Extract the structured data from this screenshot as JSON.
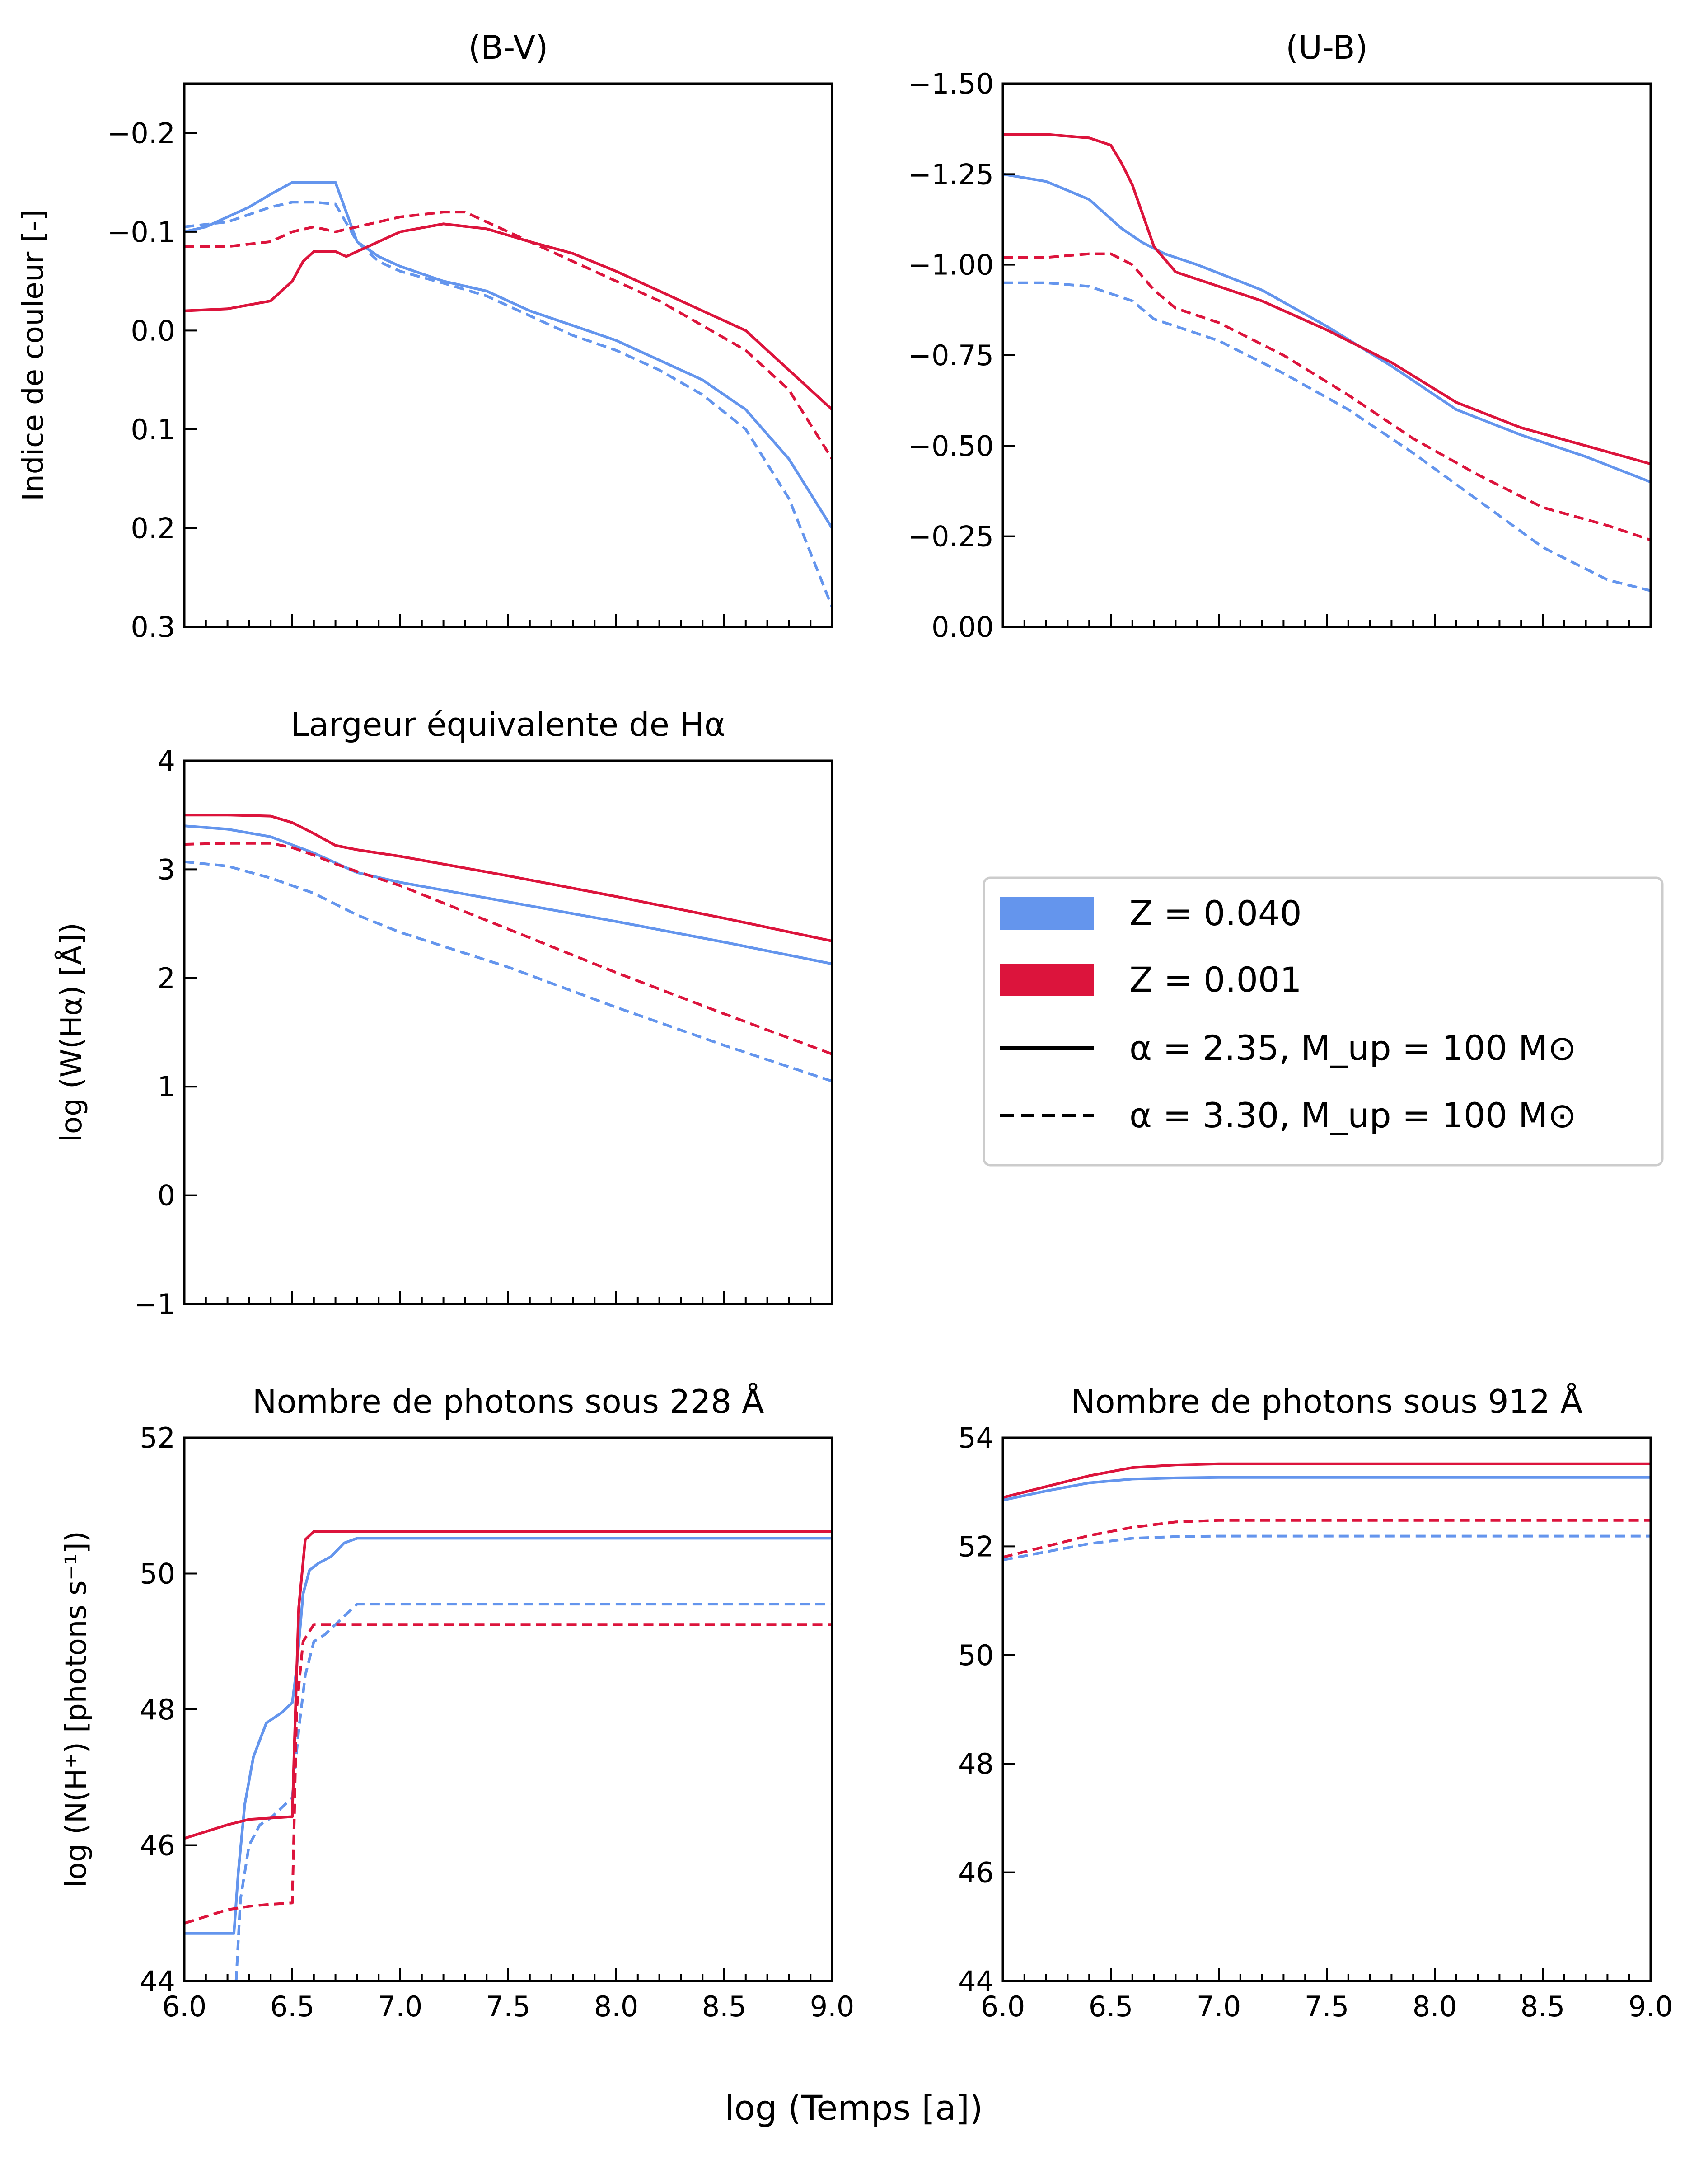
{
  "colors": {
    "z040": "#6495ED",
    "z001": "#DC143C"
  },
  "figure": {
    "xlabel": "log (Temps [a])"
  },
  "legend": {
    "z040": "Z = 0.040",
    "z001": "Z = 0.001",
    "a235": "α = 2.35, M_up = 100 M⊙",
    "a330": "α = 3.30, M_up = 100 M⊙"
  },
  "chart_data": [
    {
      "id": "bv",
      "type": "line",
      "title": "(B-V)",
      "ylabel": "Indice de couleur [-]",
      "xlim": [
        6.0,
        9.0
      ],
      "ylim": [
        0.3,
        -0.25
      ],
      "inverted_y": true,
      "yticks": [
        -0.2,
        -0.1,
        0.0,
        0.1,
        0.2,
        0.3
      ],
      "ytick_labels": [
        "−0.2",
        "−0.1",
        "0.0",
        "0.1",
        "0.2",
        "0.3"
      ],
      "show_xtick_labels": false,
      "series": [
        {
          "metallicity": "0.040",
          "alpha": "2.35",
          "color": "#6495ED",
          "dash": false,
          "x": [
            6.0,
            6.1,
            6.2,
            6.3,
            6.4,
            6.5,
            6.56,
            6.6,
            6.7,
            6.75,
            6.8,
            6.9,
            7.0,
            7.2,
            7.4,
            7.6,
            7.8,
            8.0,
            8.2,
            8.4,
            8.6,
            8.8,
            9.0
          ],
          "y": [
            -0.1,
            -0.105,
            -0.115,
            -0.125,
            -0.138,
            -0.15,
            -0.15,
            -0.15,
            -0.15,
            -0.12,
            -0.09,
            -0.075,
            -0.065,
            -0.05,
            -0.04,
            -0.02,
            -0.005,
            0.01,
            0.03,
            0.05,
            0.08,
            0.13,
            0.2
          ]
        },
        {
          "metallicity": "0.040",
          "alpha": "3.30",
          "color": "#6495ED",
          "dash": true,
          "x": [
            6.0,
            6.2,
            6.4,
            6.5,
            6.6,
            6.7,
            6.8,
            6.9,
            7.0,
            7.2,
            7.4,
            7.6,
            7.8,
            8.0,
            8.2,
            8.4,
            8.6,
            8.8,
            9.0
          ],
          "y": [
            -0.105,
            -0.11,
            -0.125,
            -0.13,
            -0.13,
            -0.128,
            -0.09,
            -0.07,
            -0.06,
            -0.048,
            -0.035,
            -0.015,
            0.005,
            0.02,
            0.04,
            0.065,
            0.1,
            0.17,
            0.28
          ]
        },
        {
          "metallicity": "0.001",
          "alpha": "2.35",
          "color": "#DC143C",
          "dash": false,
          "x": [
            6.0,
            6.2,
            6.4,
            6.5,
            6.55,
            6.6,
            6.7,
            6.75,
            6.8,
            7.0,
            7.2,
            7.4,
            7.6,
            7.8,
            8.0,
            8.2,
            8.4,
            8.6,
            8.8,
            9.0
          ],
          "y": [
            -0.02,
            -0.022,
            -0.03,
            -0.05,
            -0.07,
            -0.08,
            -0.08,
            -0.075,
            -0.08,
            -0.1,
            -0.108,
            -0.103,
            -0.09,
            -0.078,
            -0.06,
            -0.04,
            -0.02,
            0.0,
            0.04,
            0.08
          ]
        },
        {
          "metallicity": "0.001",
          "alpha": "3.30",
          "color": "#DC143C",
          "dash": true,
          "x": [
            6.0,
            6.2,
            6.4,
            6.5,
            6.6,
            6.7,
            6.8,
            7.0,
            7.2,
            7.3,
            7.4,
            7.6,
            7.8,
            8.0,
            8.2,
            8.4,
            8.6,
            8.8,
            9.0
          ],
          "y": [
            -0.085,
            -0.085,
            -0.09,
            -0.1,
            -0.105,
            -0.1,
            -0.105,
            -0.115,
            -0.12,
            -0.12,
            -0.11,
            -0.09,
            -0.07,
            -0.05,
            -0.03,
            -0.005,
            0.02,
            0.06,
            0.13
          ]
        }
      ]
    },
    {
      "id": "ub",
      "type": "line",
      "title": "(U-B)",
      "ylabel": "",
      "xlim": [
        6.0,
        9.0
      ],
      "ylim": [
        0.0,
        -1.5
      ],
      "inverted_y": true,
      "yticks": [
        -1.5,
        -1.25,
        -1.0,
        -0.75,
        -0.5,
        -0.25,
        0.0
      ],
      "ytick_labels": [
        "−1.50",
        "−1.25",
        "−1.00",
        "−0.75",
        "−0.50",
        "−0.25",
        "0.00"
      ],
      "show_xtick_labels": false,
      "series": [
        {
          "metallicity": "0.040",
          "alpha": "2.35",
          "color": "#6495ED",
          "dash": false,
          "x": [
            6.0,
            6.2,
            6.4,
            6.55,
            6.65,
            6.75,
            6.85,
            6.9,
            7.2,
            7.5,
            7.8,
            8.1,
            8.4,
            8.7,
            9.0
          ],
          "y": [
            -1.25,
            -1.23,
            -1.18,
            -1.1,
            -1.06,
            -1.03,
            -1.01,
            -1.0,
            -0.93,
            -0.83,
            -0.72,
            -0.6,
            -0.53,
            -0.47,
            -0.4
          ]
        },
        {
          "metallicity": "0.040",
          "alpha": "3.30",
          "color": "#6495ED",
          "dash": true,
          "x": [
            6.0,
            6.2,
            6.4,
            6.5,
            6.6,
            6.7,
            6.8,
            6.9,
            7.0,
            7.3,
            7.6,
            7.9,
            8.2,
            8.5,
            8.8,
            9.0
          ],
          "y": [
            -0.95,
            -0.95,
            -0.94,
            -0.92,
            -0.9,
            -0.85,
            -0.83,
            -0.81,
            -0.79,
            -0.7,
            -0.6,
            -0.48,
            -0.35,
            -0.22,
            -0.13,
            -0.1
          ]
        },
        {
          "metallicity": "0.001",
          "alpha": "2.35",
          "color": "#DC143C",
          "dash": false,
          "x": [
            6.0,
            6.2,
            6.4,
            6.5,
            6.55,
            6.6,
            6.7,
            6.8,
            6.9,
            7.2,
            7.5,
            7.8,
            8.1,
            8.4,
            8.7,
            9.0
          ],
          "y": [
            -1.36,
            -1.36,
            -1.35,
            -1.33,
            -1.28,
            -1.22,
            -1.05,
            -0.98,
            -0.96,
            -0.9,
            -0.82,
            -0.73,
            -0.62,
            -0.55,
            -0.5,
            -0.45
          ]
        },
        {
          "metallicity": "0.001",
          "alpha": "3.30",
          "color": "#DC143C",
          "dash": true,
          "x": [
            6.0,
            6.2,
            6.4,
            6.5,
            6.6,
            6.7,
            6.8,
            6.9,
            7.0,
            7.3,
            7.6,
            7.9,
            8.2,
            8.5,
            8.8,
            9.0
          ],
          "y": [
            -1.02,
            -1.02,
            -1.03,
            -1.03,
            -1.0,
            -0.93,
            -0.88,
            -0.86,
            -0.84,
            -0.75,
            -0.64,
            -0.52,
            -0.42,
            -0.33,
            -0.28,
            -0.24
          ]
        }
      ]
    },
    {
      "id": "ha",
      "type": "line",
      "title": "Largeur équivalente de Hα",
      "ylabel": "log (W(Hα) [Å])",
      "xlim": [
        6.0,
        9.0
      ],
      "ylim": [
        -1,
        4
      ],
      "inverted_y": false,
      "yticks": [
        -1,
        0,
        1,
        2,
        3,
        4
      ],
      "ytick_labels": [
        "−1",
        "0",
        "1",
        "2",
        "3",
        "4"
      ],
      "show_xtick_labels": false,
      "series": [
        {
          "metallicity": "0.040",
          "alpha": "2.35",
          "color": "#6495ED",
          "dash": false,
          "x": [
            6.0,
            6.2,
            6.4,
            6.6,
            6.8,
            7.0,
            7.5,
            8.0,
            8.5,
            9.0
          ],
          "y": [
            3.4,
            3.37,
            3.3,
            3.15,
            2.97,
            2.88,
            2.7,
            2.52,
            2.33,
            2.13
          ]
        },
        {
          "metallicity": "0.040",
          "alpha": "3.30",
          "color": "#6495ED",
          "dash": true,
          "x": [
            6.0,
            6.2,
            6.4,
            6.6,
            6.8,
            7.0,
            7.5,
            8.0,
            8.5,
            9.0
          ],
          "y": [
            3.07,
            3.03,
            2.92,
            2.78,
            2.58,
            2.42,
            2.1,
            1.73,
            1.38,
            1.05
          ]
        },
        {
          "metallicity": "0.001",
          "alpha": "2.35",
          "color": "#DC143C",
          "dash": false,
          "x": [
            6.0,
            6.2,
            6.4,
            6.5,
            6.6,
            6.7,
            6.8,
            7.0,
            7.5,
            8.0,
            8.5,
            9.0
          ],
          "y": [
            3.5,
            3.5,
            3.49,
            3.43,
            3.33,
            3.22,
            3.18,
            3.12,
            2.94,
            2.75,
            2.55,
            2.34
          ]
        },
        {
          "metallicity": "0.001",
          "alpha": "3.30",
          "color": "#DC143C",
          "dash": true,
          "x": [
            6.0,
            6.2,
            6.4,
            6.5,
            6.6,
            6.7,
            6.8,
            7.0,
            7.5,
            8.0,
            8.5,
            9.0
          ],
          "y": [
            3.23,
            3.24,
            3.24,
            3.2,
            3.13,
            3.05,
            2.98,
            2.85,
            2.45,
            2.05,
            1.67,
            1.3
          ]
        }
      ]
    },
    {
      "id": "n228",
      "type": "line",
      "title": "Nombre de photons sous 228 Å",
      "ylabel": "log (N(H⁺) [photons s⁻¹])",
      "xlim": [
        6.0,
        9.0
      ],
      "ylim": [
        44,
        52
      ],
      "inverted_y": false,
      "yticks": [
        44,
        46,
        48,
        50,
        52
      ],
      "ytick_labels": [
        "44",
        "46",
        "48",
        "50",
        "52"
      ],
      "xticks": [
        6.0,
        6.5,
        7.0,
        7.5,
        8.0,
        8.5,
        9.0
      ],
      "xtick_labels": [
        "6.0",
        "6.5",
        "7.0",
        "7.5",
        "8.0",
        "8.5",
        "9.0"
      ],
      "show_xtick_labels": true,
      "series": [
        {
          "metallicity": "0.040",
          "alpha": "2.35",
          "color": "#6495ED",
          "dash": false,
          "x": [
            6.0,
            6.23,
            6.25,
            6.28,
            6.32,
            6.38,
            6.45,
            6.5,
            6.52,
            6.55,
            6.58,
            6.62,
            6.68,
            6.74,
            6.8,
            7.0,
            9.0
          ],
          "y": [
            44.7,
            44.7,
            45.6,
            46.6,
            47.3,
            47.8,
            47.95,
            48.1,
            48.6,
            49.7,
            50.05,
            50.15,
            50.25,
            50.45,
            50.52,
            50.52,
            50.52
          ]
        },
        {
          "metallicity": "0.040",
          "alpha": "3.30",
          "color": "#6495ED",
          "dash": true,
          "x": [
            6.24,
            6.26,
            6.3,
            6.35,
            6.4,
            6.5,
            6.53,
            6.56,
            6.6,
            6.65,
            6.7,
            6.8,
            9.0
          ],
          "y": [
            44.0,
            45.2,
            46.0,
            46.3,
            46.4,
            46.7,
            47.7,
            48.5,
            49.0,
            49.1,
            49.25,
            49.55,
            49.55
          ]
        },
        {
          "metallicity": "0.001",
          "alpha": "2.35",
          "color": "#DC143C",
          "dash": false,
          "x": [
            6.0,
            6.1,
            6.2,
            6.3,
            6.4,
            6.5,
            6.51,
            6.53,
            6.56,
            6.6,
            9.0
          ],
          "y": [
            46.1,
            46.2,
            46.3,
            46.38,
            46.4,
            46.42,
            47.5,
            49.5,
            50.5,
            50.62,
            50.62
          ]
        },
        {
          "metallicity": "0.001",
          "alpha": "3.30",
          "color": "#DC143C",
          "dash": true,
          "x": [
            6.0,
            6.1,
            6.2,
            6.3,
            6.4,
            6.5,
            6.51,
            6.52,
            6.55,
            6.6,
            9.0
          ],
          "y": [
            44.85,
            44.95,
            45.05,
            45.1,
            45.13,
            45.15,
            46.5,
            48.0,
            49.0,
            49.25,
            49.25
          ]
        }
      ]
    },
    {
      "id": "n912",
      "type": "line",
      "title": "Nombre de photons sous 912 Å",
      "ylabel": "",
      "xlim": [
        6.0,
        9.0
      ],
      "ylim": [
        44,
        54
      ],
      "inverted_y": false,
      "yticks": [
        44,
        46,
        48,
        50,
        52,
        54
      ],
      "ytick_labels": [
        "44",
        "46",
        "48",
        "50",
        "52",
        "54"
      ],
      "xticks": [
        6.0,
        6.5,
        7.0,
        7.5,
        8.0,
        8.5,
        9.0
      ],
      "xtick_labels": [
        "6.0",
        "6.5",
        "7.0",
        "7.5",
        "8.0",
        "8.5",
        "9.0"
      ],
      "show_xtick_labels": true,
      "series": [
        {
          "metallicity": "0.040",
          "alpha": "2.35",
          "color": "#6495ED",
          "dash": false,
          "x": [
            6.0,
            6.2,
            6.4,
            6.6,
            6.8,
            7.0,
            9.0
          ],
          "y": [
            52.85,
            53.02,
            53.17,
            53.24,
            53.26,
            53.27,
            53.27
          ]
        },
        {
          "metallicity": "0.040",
          "alpha": "3.30",
          "color": "#6495ED",
          "dash": true,
          "x": [
            6.0,
            6.2,
            6.4,
            6.6,
            6.8,
            7.0,
            9.0
          ],
          "y": [
            51.75,
            51.9,
            52.05,
            52.15,
            52.18,
            52.19,
            52.19
          ]
        },
        {
          "metallicity": "0.001",
          "alpha": "2.35",
          "color": "#DC143C",
          "dash": false,
          "x": [
            6.0,
            6.2,
            6.4,
            6.6,
            6.8,
            7.0,
            9.0
          ],
          "y": [
            52.9,
            53.1,
            53.3,
            53.45,
            53.5,
            53.52,
            53.52
          ]
        },
        {
          "metallicity": "0.001",
          "alpha": "3.30",
          "color": "#DC143C",
          "dash": true,
          "x": [
            6.0,
            6.2,
            6.4,
            6.6,
            6.8,
            7.0,
            9.0
          ],
          "y": [
            51.8,
            52.0,
            52.2,
            52.35,
            52.45,
            52.48,
            52.48
          ]
        }
      ]
    }
  ]
}
